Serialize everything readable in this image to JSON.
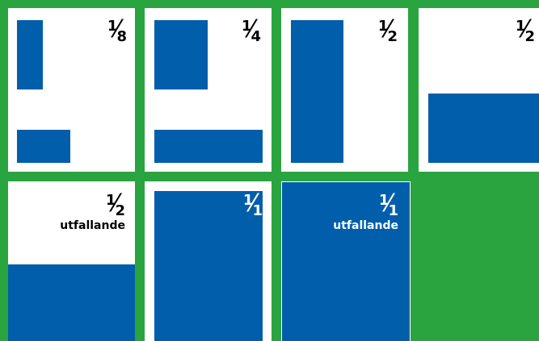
{
  "tiles": [
    {
      "num": "1",
      "den": "8"
    },
    {
      "num": "1",
      "den": "4"
    },
    {
      "num": "1",
      "den": "2"
    },
    {
      "num": "1",
      "den": "2"
    },
    {
      "num": "1",
      "den": "2",
      "note": "utfallande"
    },
    {
      "num": "1",
      "den": "1"
    },
    {
      "num": "1",
      "den": "1",
      "note": "utfallande"
    }
  ]
}
